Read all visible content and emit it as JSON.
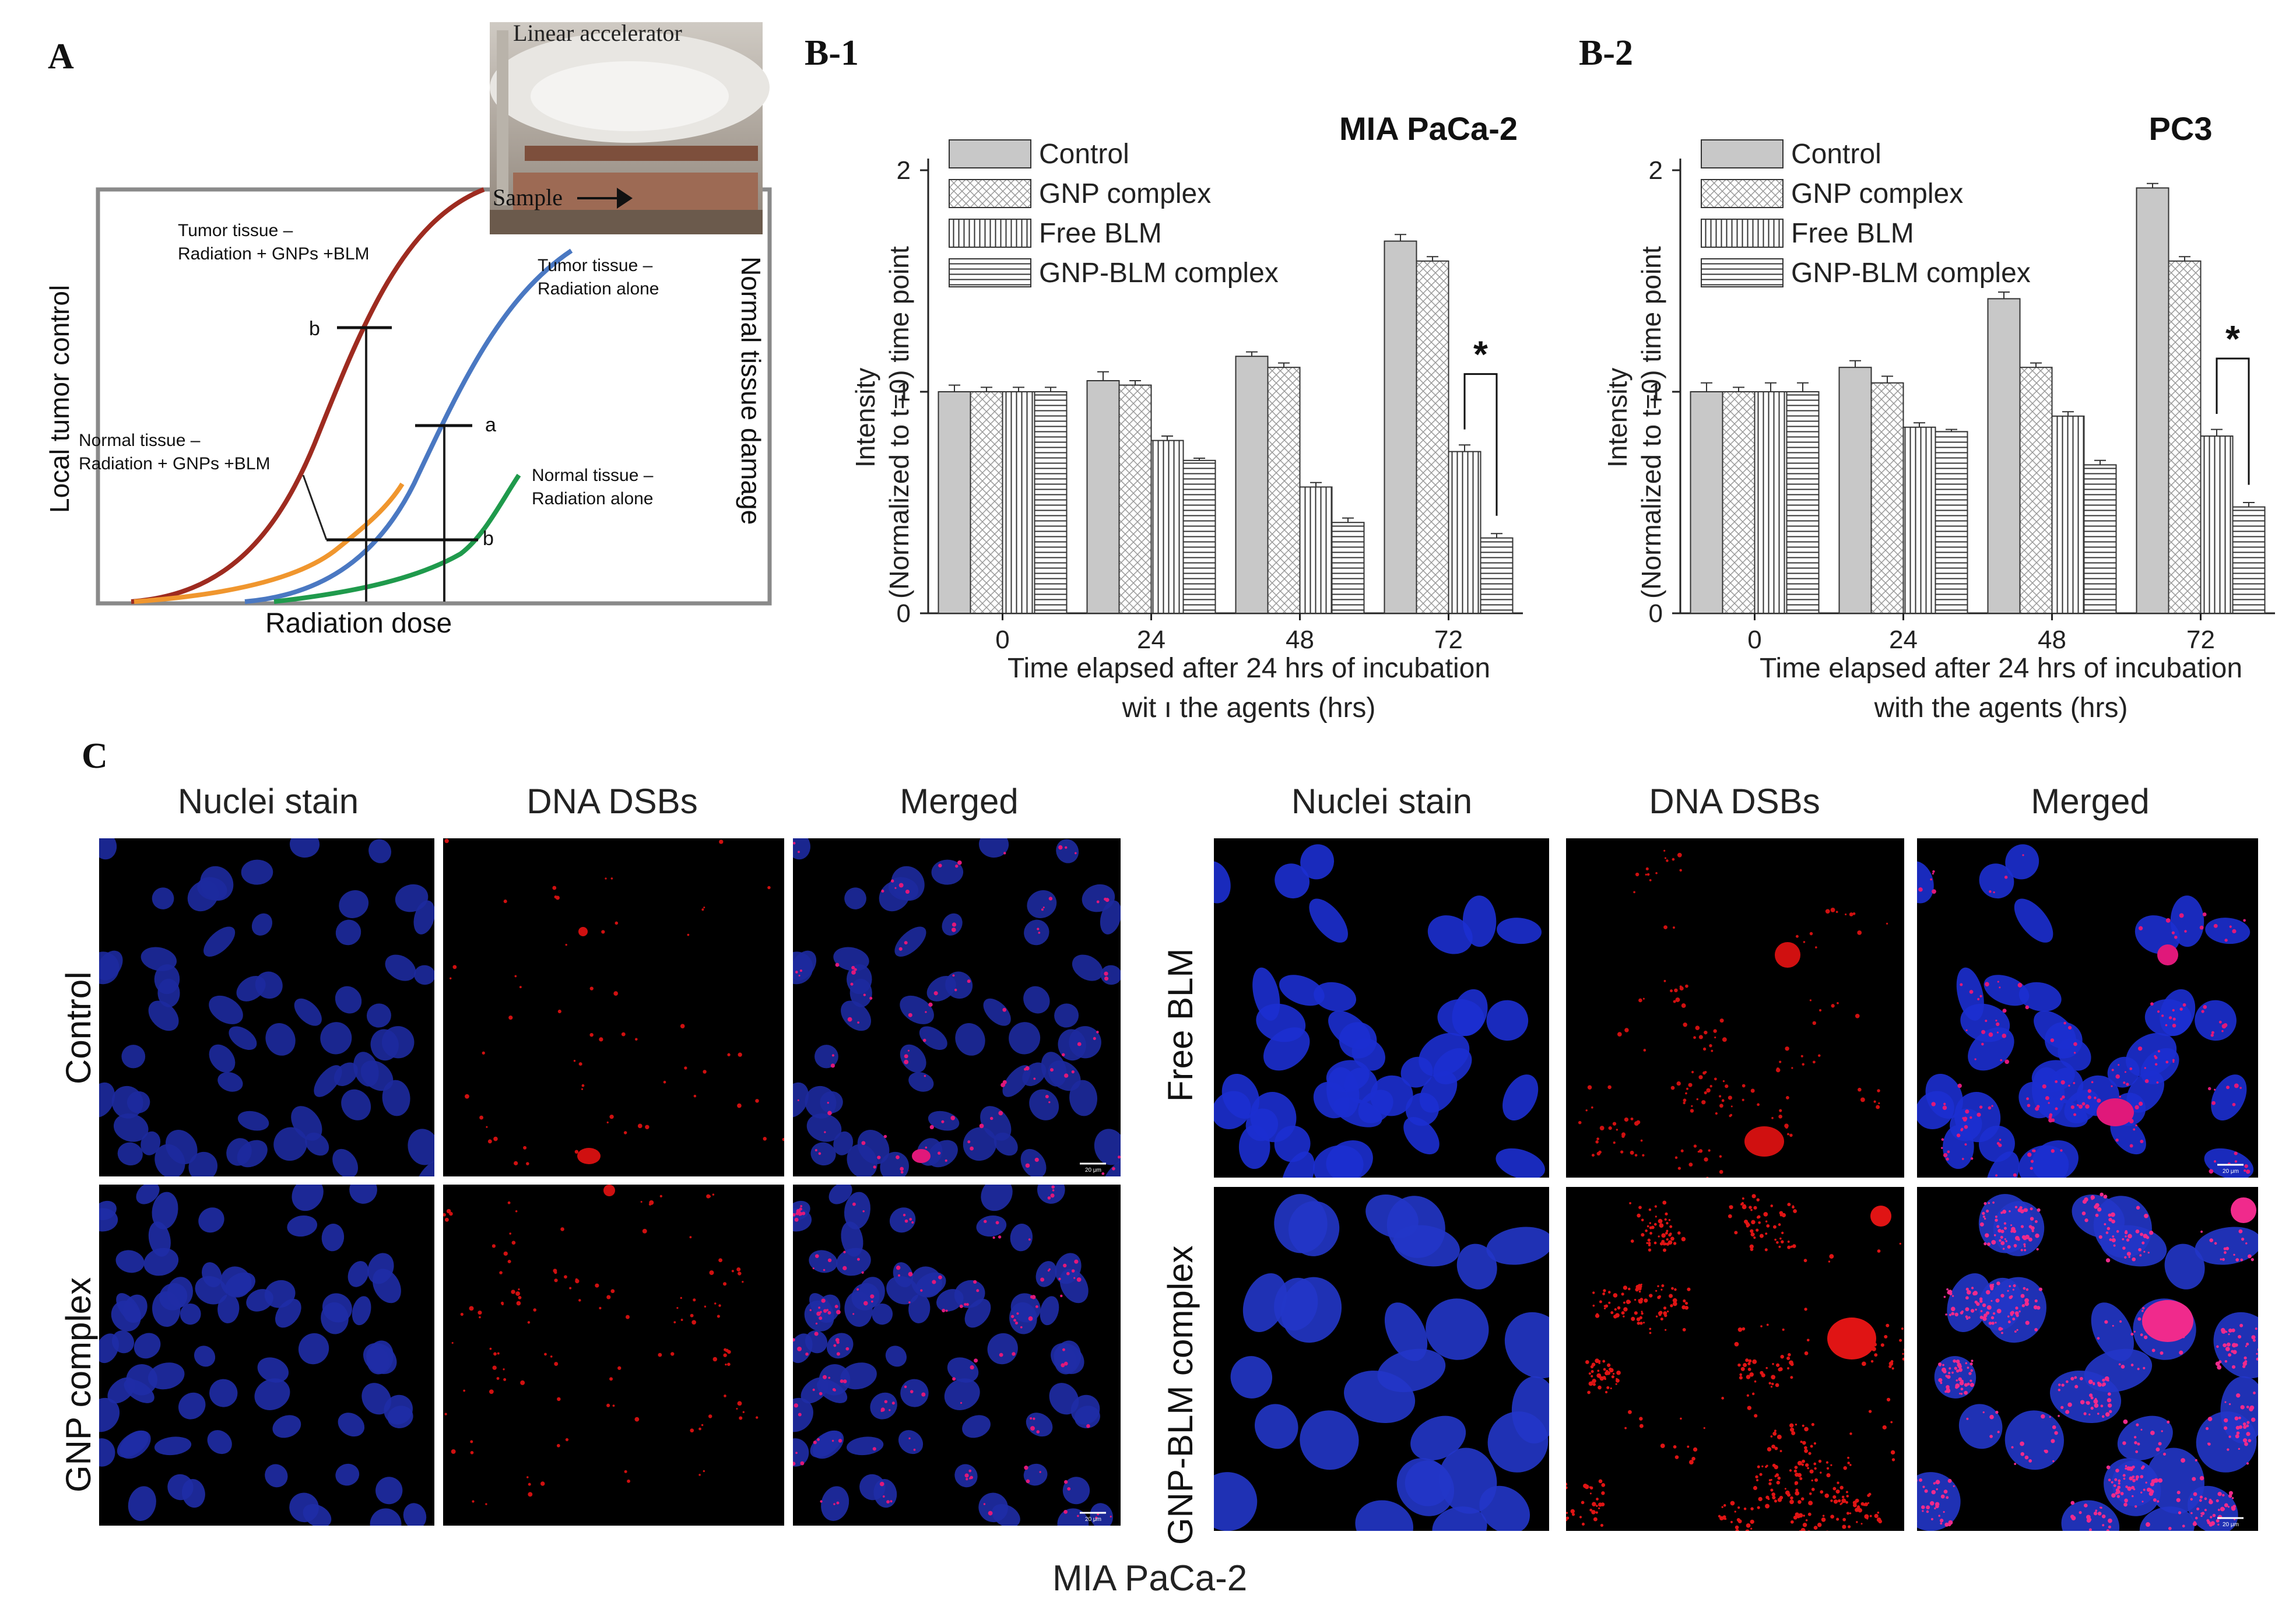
{
  "panels": {
    "a": "A",
    "b1": "B-1",
    "b2": "B-2",
    "c": "C"
  },
  "panel_a": {
    "photo_title": "Linear accelerator",
    "photo_sample": "Sample",
    "y_left": "Local tumor control",
    "y_right": "Normal tissue damage",
    "x_label": "Radiation dose",
    "curve_tumor_combo": [
      "Tumor tissue –",
      "Radiation + GNPs +BLM"
    ],
    "curve_tumor_alone": [
      "Tumor tissue –",
      "Radiation alone"
    ],
    "curve_normal_combo": [
      "Normal tissue –",
      "Radiation + GNPs +BLM"
    ],
    "curve_normal_alone": [
      "Normal tissue –",
      "Radiation alone"
    ],
    "marker_b_upper": "b",
    "marker_a": "a",
    "marker_b_lower": "b",
    "colors": {
      "tumor_combo": "#9e2b20",
      "tumor_alone": "#4a78c2",
      "normal_combo": "#f0962e",
      "normal_alone": "#1f9a4c",
      "frame": "#888888"
    }
  },
  "chart_data": [
    {
      "type": "bar",
      "title": "MIA PaCa-2",
      "ylabel": [
        "Intensity",
        "(Normalized to t=0) time point"
      ],
      "xlabel": [
        "Time elapsed after 24 hrs of incubation",
        "wit ı the agents (hrs)"
      ],
      "categories": [
        "0",
        "24",
        "48",
        "72"
      ],
      "ylim": [
        0,
        2
      ],
      "yticks": [
        "0",
        "1",
        "2"
      ],
      "legend": "top-left",
      "series": [
        {
          "name": "Control",
          "values": [
            1.0,
            1.05,
            1.16,
            1.68
          ],
          "errors": [
            0.03,
            0.04,
            0.02,
            0.03
          ]
        },
        {
          "name": "GNP complex",
          "values": [
            1.0,
            1.03,
            1.11,
            1.59
          ],
          "errors": [
            0.02,
            0.02,
            0.02,
            0.02
          ]
        },
        {
          "name": "Free BLM",
          "values": [
            1.0,
            0.78,
            0.57,
            0.73
          ],
          "errors": [
            0.02,
            0.02,
            0.02,
            0.03
          ]
        },
        {
          "name": "GNP-BLM complex",
          "values": [
            1.0,
            0.69,
            0.41,
            0.34
          ],
          "errors": [
            0.02,
            0.01,
            0.02,
            0.02
          ]
        }
      ],
      "annotation": "*"
    },
    {
      "type": "bar",
      "title": "PC3",
      "ylabel": [
        "Intensity",
        "(Normalized to t=0) time point"
      ],
      "xlabel": [
        "Time elapsed after 24 hrs of incubation",
        "with the agents (hrs)"
      ],
      "categories": [
        "0",
        "24",
        "48",
        "72"
      ],
      "ylim": [
        0,
        2
      ],
      "yticks": [
        "0",
        "1",
        "2"
      ],
      "legend": "top-left",
      "series": [
        {
          "name": "Control",
          "values": [
            1.0,
            1.11,
            1.42,
            1.92
          ],
          "errors": [
            0.04,
            0.03,
            0.03,
            0.02
          ]
        },
        {
          "name": "GNP complex",
          "values": [
            1.0,
            1.04,
            1.11,
            1.59
          ],
          "errors": [
            0.02,
            0.03,
            0.02,
            0.02
          ]
        },
        {
          "name": "Free BLM",
          "values": [
            1.0,
            0.84,
            0.89,
            0.8
          ],
          "errors": [
            0.04,
            0.02,
            0.02,
            0.03
          ]
        },
        {
          "name": "GNP-BLM complex",
          "values": [
            1.0,
            0.82,
            0.67,
            0.48
          ],
          "errors": [
            0.04,
            0.01,
            0.02,
            0.02
          ]
        }
      ],
      "annotation": "*"
    }
  ],
  "panel_c": {
    "left_columns": [
      "Nuclei stain",
      "DNA DSBs",
      "Merged"
    ],
    "right_columns": [
      "Nuclei stain",
      "DNA DSBs",
      "Merged"
    ],
    "left_rows": [
      "Control",
      "GNP complex"
    ],
    "right_rows": [
      "Free BLM",
      "GNP-BLM complex"
    ],
    "scale_bar": "20 μm",
    "cell_line": "MIA PaCa-2"
  }
}
